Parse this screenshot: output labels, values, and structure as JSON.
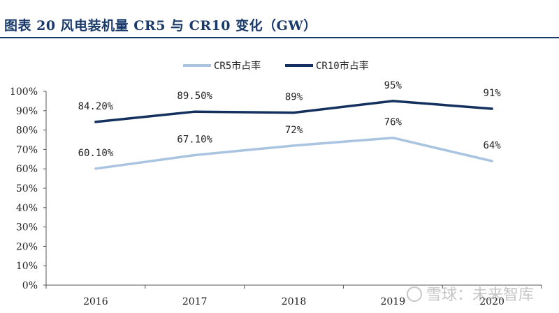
{
  "figure": {
    "title": "图表 20   风电装机量 CR5 与 CR10 变化（GW）",
    "watermark": "雪球：未来智库"
  },
  "colors": {
    "title": "#1a3a6b",
    "cr5": "#a9c4e0",
    "cr10": "#14305e",
    "axis": "#555555"
  },
  "chart_data": {
    "type": "line",
    "title": "风电装机量 CR5 与 CR10 变化（GW）",
    "categories": [
      "2016",
      "2017",
      "2018",
      "2019",
      "2020"
    ],
    "ylim": [
      0,
      100
    ],
    "yticks": [
      "0%",
      "10%",
      "20%",
      "30%",
      "40%",
      "50%",
      "60%",
      "70%",
      "80%",
      "90%",
      "100%"
    ],
    "legend_position": "top-center",
    "grid": false,
    "series": [
      {
        "name": "CR5市占率",
        "values": [
          60.1,
          67.1,
          72,
          76,
          64
        ],
        "labels": [
          "60.10%",
          "67.10%",
          "72%",
          "76%",
          "64%"
        ],
        "color": "#a9c4e0"
      },
      {
        "name": "CR10市占率",
        "values": [
          84.2,
          89.5,
          89,
          95,
          91
        ],
        "labels": [
          "84.20%",
          "89.50%",
          "89%",
          "95%",
          "91%"
        ],
        "color": "#14305e"
      }
    ]
  }
}
